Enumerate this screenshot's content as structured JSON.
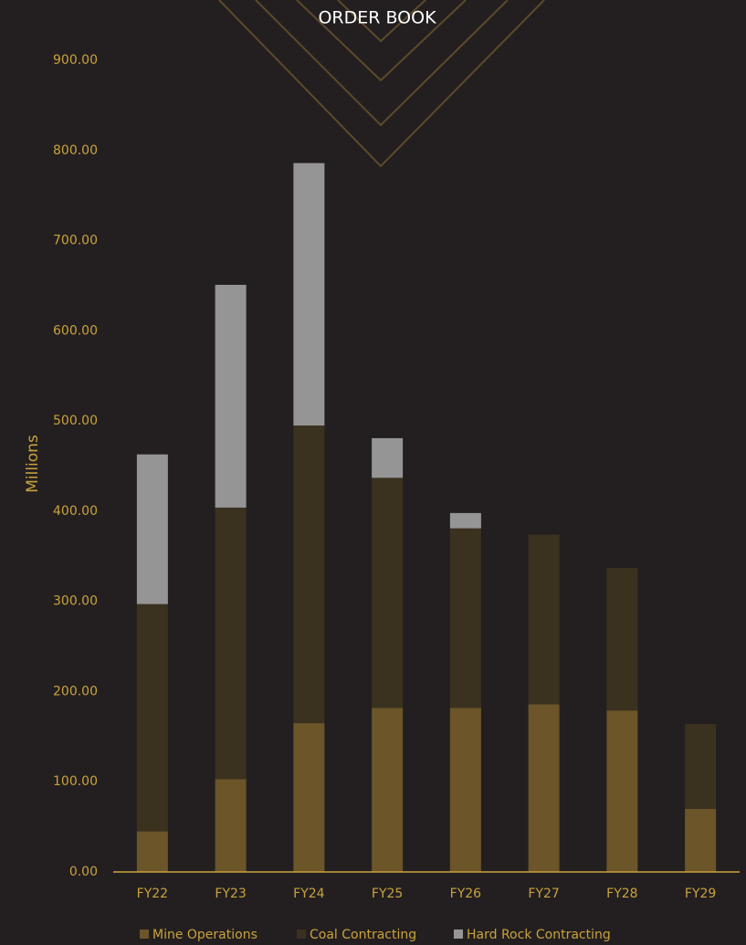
{
  "chart_data": {
    "type": "stacked-bar",
    "title": "ORDER BOOK",
    "y_label": "Millions",
    "categories": [
      "FY22",
      "FY23",
      "FY24",
      "FY25",
      "FY26",
      "FY27",
      "FY28",
      "FY29"
    ],
    "series": [
      {
        "name": "Mine Operations",
        "color": "#6b5529",
        "values": [
          45,
          103,
          165,
          182,
          182,
          186,
          179,
          70
        ]
      },
      {
        "name": "Coal Contracting",
        "color": "#3b311f",
        "values": [
          252,
          301,
          330,
          255,
          199,
          188,
          158,
          94
        ]
      },
      {
        "name": "Hard Rock Contracting",
        "color": "#959595",
        "values": [
          166,
          247,
          291,
          44,
          17,
          0,
          0,
          0
        ]
      }
    ],
    "ylim": [
      0,
      900
    ],
    "yticks": [
      {
        "value": 0,
        "label": "0.00"
      },
      {
        "value": 100,
        "label": "100.00"
      },
      {
        "value": 200,
        "label": "200.00"
      },
      {
        "value": 300,
        "label": "300.00"
      },
      {
        "value": 400,
        "label": "400.00"
      },
      {
        "value": 500,
        "label": "500.00"
      },
      {
        "value": 600,
        "label": "600.00"
      },
      {
        "value": 700,
        "label": "700.00"
      },
      {
        "value": 800,
        "label": "800.00"
      },
      {
        "value": 900,
        "label": "900.00"
      }
    ],
    "grid": false,
    "legend": "bottom"
  }
}
